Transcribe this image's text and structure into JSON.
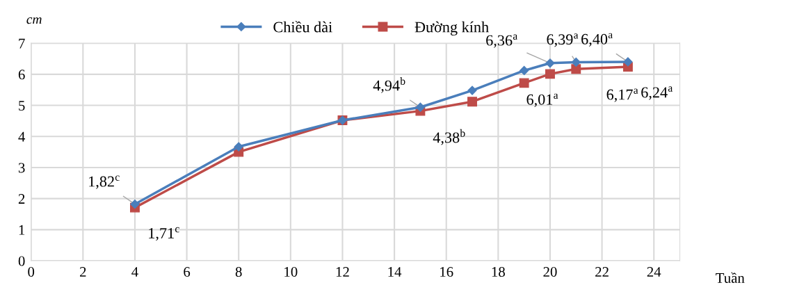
{
  "chart_data": {
    "type": "line",
    "ylabel": "cm",
    "xlabel": "Tuần",
    "x": [
      4,
      8,
      12,
      15,
      17,
      19,
      20,
      21,
      23
    ],
    "series": [
      {
        "name": "Chiều dài",
        "color": "#4a7ebb",
        "marker": "diamond",
        "values": [
          1.82,
          3.67,
          4.52,
          4.94,
          5.48,
          6.12,
          6.36,
          6.39,
          6.4
        ]
      },
      {
        "name": "Đường kính",
        "color": "#be4b48",
        "marker": "square",
        "values": [
          1.71,
          3.5,
          4.52,
          4.82,
          5.12,
          5.72,
          6.01,
          6.17,
          6.24
        ]
      }
    ],
    "annotations": [
      {
        "text": "1,82$^{c}$",
        "x": 4,
        "y": 1.82
      },
      {
        "text": "1,71$^{c}$",
        "x": 4,
        "y": 1.71
      },
      {
        "text": "4,94$^{b}$",
        "x": 15,
        "y": 4.94
      },
      {
        "text": "4,38$^{b}$",
        "x": 15,
        "y": 4.82
      },
      {
        "text": "6,36$^{a}$",
        "x": 20,
        "y": 6.36
      },
      {
        "text": "6,01$^{a}$",
        "x": 20,
        "y": 6.01
      },
      {
        "text": "6,39$^{a}$",
        "x": 21,
        "y": 6.39
      },
      {
        "text": "6,17$^{a}$",
        "x": 21,
        "y": 6.17
      },
      {
        "text": "6,40$^{a}$",
        "x": 23,
        "y": 6.4
      },
      {
        "text": "6,24$^{a}$",
        "x": 23,
        "y": 6.24
      }
    ],
    "xlim": [
      0,
      25
    ],
    "xticks": [
      0,
      2,
      4,
      6,
      8,
      10,
      12,
      14,
      16,
      18,
      20,
      22,
      24
    ],
    "ylim": [
      0,
      7
    ],
    "yticks": [
      0,
      1,
      2,
      3,
      4,
      5,
      6,
      7
    ],
    "grid": true,
    "legend": "top",
    "line_style": "solid"
  }
}
